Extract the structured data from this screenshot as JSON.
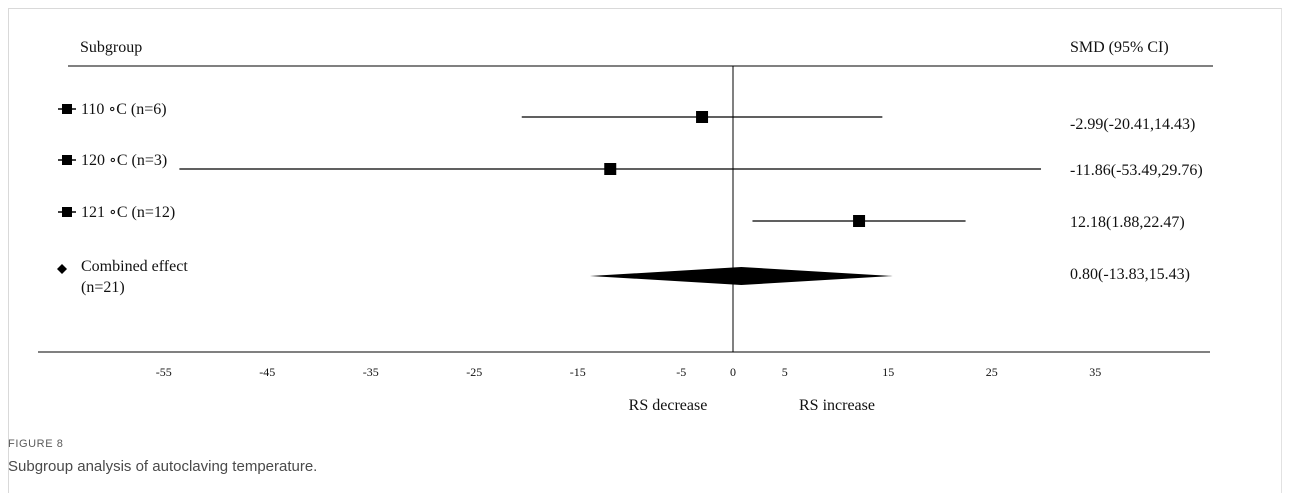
{
  "figure": {
    "label": "FIGURE 8",
    "caption": "Subgroup analysis of autoclaving temperature."
  },
  "chart_data": {
    "type": "forest",
    "header_left": "Subgroup",
    "header_right": "SMD (95% CI)",
    "xlim": [
      -62,
      42
    ],
    "x_ticks": [
      -55,
      -45,
      -35,
      -25,
      -15,
      -5,
      0,
      5,
      15,
      25,
      35
    ],
    "x_direction_labels": [
      "RS decrease",
      "RS increase"
    ],
    "null_line": 0,
    "rows": [
      {
        "label": "110 ∘C (n=6)",
        "point": -2.99,
        "lower": -20.41,
        "upper": 14.43,
        "ci_text": "-2.99(-20.41,14.43)",
        "marker": "square"
      },
      {
        "label": "120 ∘C (n=3)",
        "point": -11.86,
        "lower": -53.49,
        "upper": 29.76,
        "ci_text": "-11.86(-53.49,29.76)",
        "marker": "square"
      },
      {
        "label": "121 ∘C (n=12)",
        "point": 12.18,
        "lower": 1.88,
        "upper": 22.47,
        "ci_text": "12.18(1.88,22.47)",
        "marker": "square"
      }
    ],
    "combined": {
      "label_lines": [
        "Combined effect",
        "(n=21)"
      ],
      "point": 0.8,
      "lower": -13.83,
      "upper": 15.43,
      "ci_text": "0.80(-13.83,15.43)",
      "marker": "diamond"
    },
    "colors": {
      "ink": "#000000"
    }
  }
}
